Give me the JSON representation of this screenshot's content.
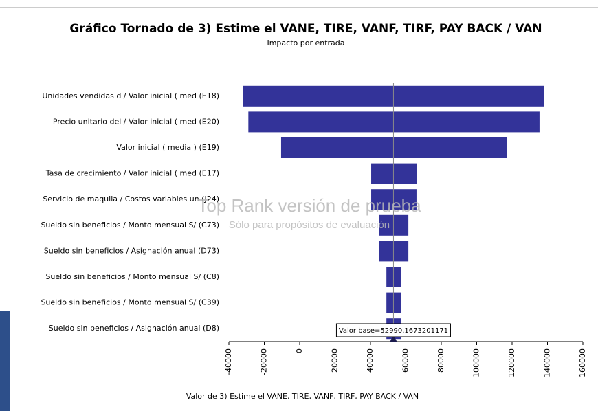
{
  "chart_data": {
    "type": "tornado",
    "title": "Gráfico Tornado de 3) Estime el VANE, TIRE, VANF, TIRF, PAY BACK / VAN",
    "subtitle": "Impacto por entrada",
    "x_label": "Valor de 3) Estime el VANE, TIRE, VANF, TIRF, PAY BACK / VAN",
    "watermark": [
      "Top Rank versión de prueba",
      "Sólo para propósitos de evaluación"
    ],
    "categories": [
      "Unidades vendidas d / Valor inicial ( med (E18)",
      "Precio unitario del / Valor inicial ( med (E20)",
      "Valor inicial ( media ) (E19)",
      "Tasa de crecimiento / Valor inicial ( med (E17)",
      "Servicio de maquila / Costos variables un (J24)",
      "Sueldo sin beneficios / Monto mensual  S/ (C73)",
      "Sueldo sin beneficios  / Asignación anual (D73)",
      "Sueldo sin beneficios / Monto mensual  S/ (C8)",
      "Sueldo sin beneficios / Monto mensual  S/ (C39)",
      "Sueldo sin beneficios  / Asignación anual (D8)"
    ],
    "low": [
      -32000,
      -29000,
      -10500,
      40400,
      40400,
      44700,
      45000,
      49000,
      49000,
      49000
    ],
    "high": [
      138000,
      135500,
      117000,
      66400,
      66000,
      61400,
      61400,
      57100,
      57100,
      57100
    ],
    "color": "#333399",
    "base_line": {
      "value": 52990.1673201171,
      "label": "Valor base=52990.1673201171"
    },
    "xlim": [
      -40000,
      160000
    ],
    "xticks": [
      -40000,
      -20000,
      0,
      20000,
      40000,
      60000,
      80000,
      100000,
      120000,
      140000,
      160000
    ]
  }
}
